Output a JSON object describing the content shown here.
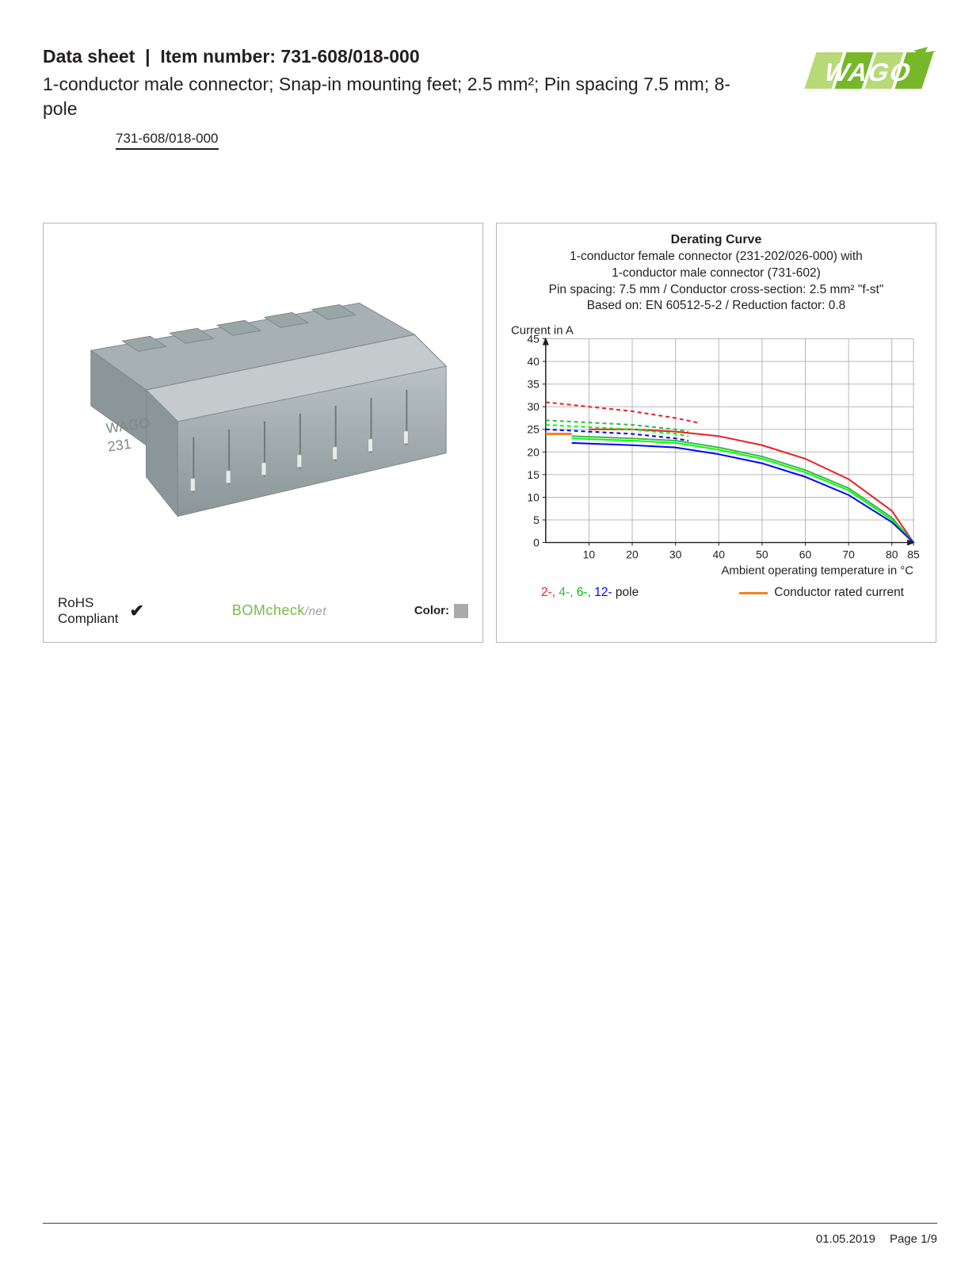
{
  "header": {
    "prefix": "Data sheet",
    "sep": "|",
    "item_label": "Item number:",
    "item_number": "731-608/018-000",
    "subtitle": "1-conductor male connector; Snap-in mounting feet; 2.5 mm²; Pin spacing 7.5 mm; 8-pole",
    "tag": "731-608/018-000"
  },
  "logo": {
    "brand": "WAGO",
    "color_light": "#b7d978",
    "color_dark": "#77b82a"
  },
  "left_panel": {
    "rohs_line1": "RoHS",
    "rohs_line2": "Compliant",
    "bomcheck_main": "BOMcheck",
    "bomcheck_suffix": "/net",
    "color_label": "Color:",
    "color_swatch": "#aaaaaa",
    "product_body_color": "#a7b0b2",
    "product_shadow": "#8a9698",
    "product_highlight": "#c3cbcd"
  },
  "chart": {
    "title": "Derating Curve",
    "line1": "1-conductor female connector (231-202/026-000) with",
    "line2": "1-conductor male connector (731-602)",
    "line3": "Pin spacing: 7.5 mm / Conductor cross-section: 2.5 mm² \"f-st\"",
    "line4": "Based on: EN 60512-5-2 / Reduction factor: 0.8",
    "y_axis_label": "Current in A",
    "x_axis_label": "Ambient operating temperature in °C",
    "type": "line",
    "xlim": [
      0,
      85
    ],
    "x_ticks": [
      10,
      20,
      30,
      40,
      50,
      60,
      70,
      80,
      85
    ],
    "ylim": [
      0,
      45
    ],
    "y_ticks": [
      0,
      5,
      10,
      15,
      20,
      25,
      30,
      35,
      40,
      45
    ],
    "grid_color": "#b8b8b8",
    "axis_color": "#231f20",
    "background_color": "#ffffff",
    "tick_fontsize": 14,
    "label_fontsize": 15,
    "series": [
      {
        "name": "2-pole-dash",
        "color": "#ed1c24",
        "dash": "5,4",
        "width": 2,
        "points": [
          [
            0,
            31
          ],
          [
            10,
            30
          ],
          [
            20,
            29
          ],
          [
            30,
            27.5
          ],
          [
            35,
            26.5
          ]
        ]
      },
      {
        "name": "2-pole-solid",
        "color": "#ed1c24",
        "dash": "none",
        "width": 2,
        "points": [
          [
            10,
            25
          ],
          [
            20,
            25
          ],
          [
            30,
            24.5
          ],
          [
            40,
            23.5
          ],
          [
            50,
            21.5
          ],
          [
            60,
            18.5
          ],
          [
            70,
            14
          ],
          [
            80,
            7
          ],
          [
            85,
            0
          ]
        ]
      },
      {
        "name": "4-pole-dash",
        "color": "#39b54a",
        "dash": "5,4",
        "width": 2,
        "points": [
          [
            0,
            27
          ],
          [
            10,
            26.5
          ],
          [
            20,
            26
          ],
          [
            30,
            25
          ],
          [
            33,
            24.5
          ]
        ]
      },
      {
        "name": "4-pole-solid",
        "color": "#39b54a",
        "dash": "none",
        "width": 2,
        "points": [
          [
            6,
            23.5
          ],
          [
            20,
            23
          ],
          [
            30,
            22.5
          ],
          [
            40,
            21
          ],
          [
            50,
            19
          ],
          [
            60,
            16
          ],
          [
            70,
            12
          ],
          [
            80,
            5.5
          ],
          [
            85,
            0
          ]
        ]
      },
      {
        "name": "6-pole-dash",
        "color": "#00ff00",
        "dash": "5,4",
        "width": 2,
        "points": [
          [
            0,
            26
          ],
          [
            10,
            25.5
          ],
          [
            20,
            25
          ],
          [
            30,
            24
          ],
          [
            33,
            23.5
          ]
        ]
      },
      {
        "name": "6-pole-solid",
        "color": "#00ff00",
        "dash": "none",
        "width": 2,
        "points": [
          [
            6,
            23
          ],
          [
            20,
            22.5
          ],
          [
            30,
            22
          ],
          [
            40,
            20.5
          ],
          [
            50,
            18.5
          ],
          [
            60,
            15.5
          ],
          [
            70,
            11.5
          ],
          [
            80,
            5
          ],
          [
            85,
            0
          ]
        ]
      },
      {
        "name": "12-pole-dash",
        "color": "#0000ff",
        "dash": "5,4",
        "width": 2,
        "points": [
          [
            0,
            25
          ],
          [
            10,
            24.5
          ],
          [
            20,
            24
          ],
          [
            30,
            23
          ],
          [
            33,
            22.5
          ]
        ]
      },
      {
        "name": "12-pole-solid",
        "color": "#0000ff",
        "dash": "none",
        "width": 2,
        "points": [
          [
            6,
            22
          ],
          [
            20,
            21.5
          ],
          [
            30,
            21
          ],
          [
            40,
            19.5
          ],
          [
            50,
            17.5
          ],
          [
            60,
            14.5
          ],
          [
            70,
            10.5
          ],
          [
            80,
            4.5
          ],
          [
            85,
            0
          ]
        ]
      },
      {
        "name": "rated-current",
        "color": "#f58220",
        "dash": "none",
        "width": 3,
        "points": [
          [
            0,
            24
          ],
          [
            6,
            24
          ]
        ]
      }
    ],
    "legend": {
      "poles": [
        {
          "label": "2-",
          "color": "#ed1c24"
        },
        {
          "label": "4-",
          "color": "#39b54a"
        },
        {
          "label": "6-",
          "color": "#00c000"
        },
        {
          "label": "12-",
          "color": "#0000ff"
        }
      ],
      "pole_suffix": " pole",
      "rated_label": "Conductor rated current",
      "rated_color": "#f58220"
    }
  },
  "footer": {
    "date": "01.05.2019",
    "page": "Page 1/9"
  }
}
